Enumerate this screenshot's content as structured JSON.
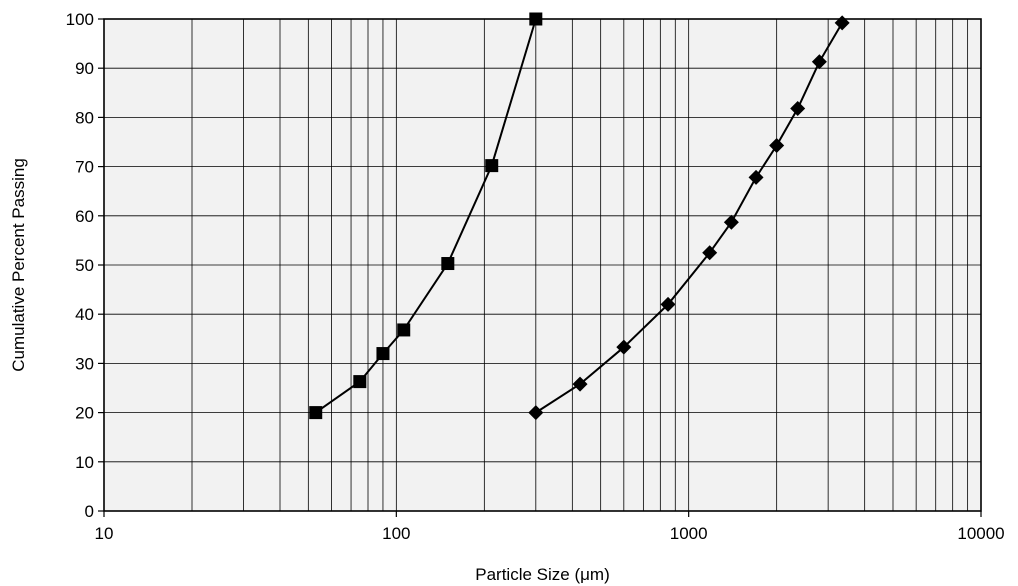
{
  "chart_data": {
    "type": "scatter",
    "title": "",
    "xlabel": "Particle Size (μm)",
    "ylabel": "Cumulative Percent Passing",
    "x_scale": "log",
    "xlim": [
      10,
      10000
    ],
    "ylim": [
      0,
      100
    ],
    "x_ticks": [
      "10",
      "100",
      "1000",
      "10000"
    ],
    "y_ticks": [
      "0",
      "10",
      "20",
      "30",
      "40",
      "50",
      "60",
      "70",
      "80",
      "90",
      "100"
    ],
    "grid": true,
    "legend": "none",
    "plot_background": "#f2f2f2",
    "series": [
      {
        "marker": "square",
        "color": "#000000",
        "x": [
          53,
          75,
          90,
          106,
          150,
          212,
          300
        ],
        "y": [
          20,
          26.3,
          32,
          36.8,
          50.3,
          70.2,
          100
        ]
      },
      {
        "marker": "diamond",
        "color": "#000000",
        "x": [
          300,
          425,
          600,
          850,
          1180,
          1400,
          1700,
          2000,
          2360,
          2800,
          3350
        ],
        "y": [
          20,
          25.8,
          33.3,
          42,
          52.5,
          58.7,
          67.8,
          74.3,
          81.8,
          91.3,
          99.2
        ]
      }
    ]
  }
}
